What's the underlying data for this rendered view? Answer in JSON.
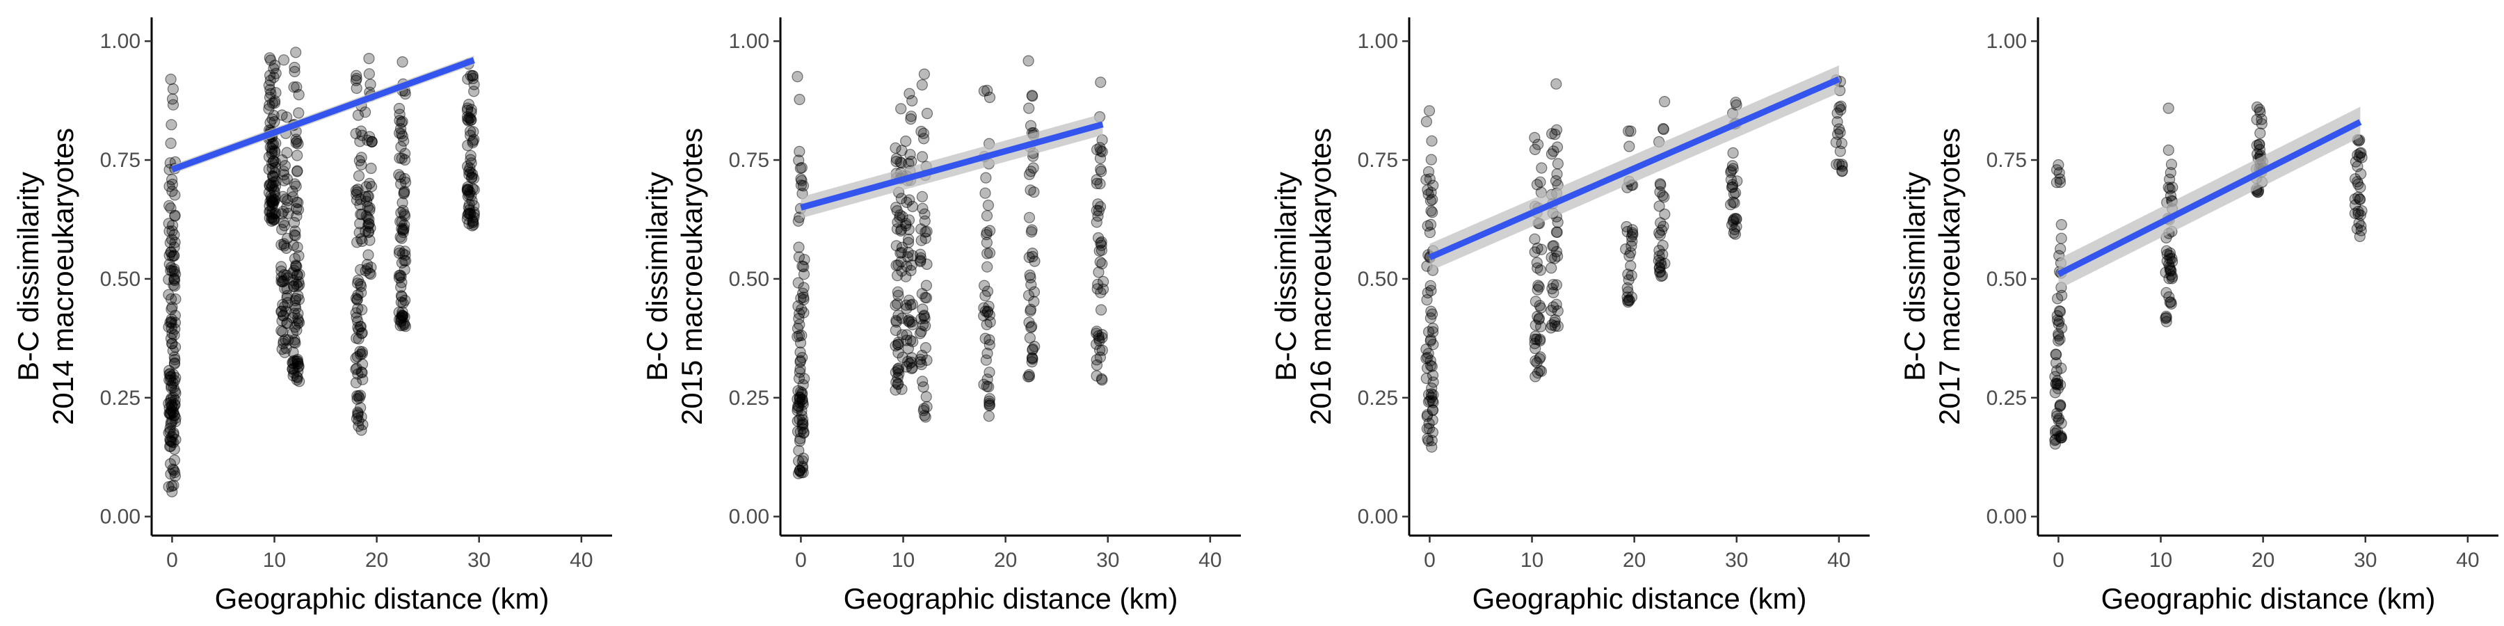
{
  "colors": {
    "points": "#000000",
    "fit_line": "#3355ee",
    "ci_band": "#bdbdbd",
    "axis": "#000000"
  },
  "chart_data": [
    {
      "type": "scatter",
      "title": "",
      "xlabel": "Geographic distance (km)",
      "ylabel": [
        "B-C dissimilarity",
        "2014 macroeukaryotes"
      ],
      "xlim": [
        -2,
        43
      ],
      "ylim": [
        -0.04,
        1.05
      ],
      "xticks": [
        0,
        10,
        20,
        30,
        40
      ],
      "xtick_labels": [
        "0",
        "10",
        "20",
        "30",
        "40"
      ],
      "yticks": [
        0,
        0.25,
        0.5,
        0.75,
        1
      ],
      "ytick_labels": [
        "0.00",
        "0.25",
        "0.50",
        "0.75",
        "1.00"
      ],
      "grid": false,
      "point_groups": [
        {
          "x": 0.0,
          "count": 140,
          "y_min": 0.05,
          "y_max": 0.99
        },
        {
          "x": 9.8,
          "count": 90,
          "y_min": 0.62,
          "y_max": 1.0
        },
        {
          "x": 11.0,
          "count": 60,
          "y_min": 0.33,
          "y_max": 1.0
        },
        {
          "x": 12.1,
          "count": 90,
          "y_min": 0.28,
          "y_max": 1.0
        },
        {
          "x": 18.3,
          "count": 80,
          "y_min": 0.18,
          "y_max": 1.0
        },
        {
          "x": 19.2,
          "count": 40,
          "y_min": 0.5,
          "y_max": 1.0
        },
        {
          "x": 22.5,
          "count": 80,
          "y_min": 0.39,
          "y_max": 0.98
        },
        {
          "x": 29.2,
          "count": 70,
          "y_min": 0.6,
          "y_max": 0.99
        }
      ],
      "fit": {
        "x_start": 0,
        "x_end": 29.5,
        "y_start": 0.73,
        "y_end": 0.96,
        "ci": 0.006
      }
    },
    {
      "type": "scatter",
      "title": "",
      "xlabel": "Geographic distance (km)",
      "ylabel": [
        "B-C dissimilarity",
        "2015 macroeukaryotes"
      ],
      "xlim": [
        -2,
        43
      ],
      "ylim": [
        -0.04,
        1.05
      ],
      "xticks": [
        0,
        10,
        20,
        30,
        40
      ],
      "xtick_labels": [
        "0",
        "10",
        "20",
        "30",
        "40"
      ],
      "yticks": [
        0,
        0.25,
        0.5,
        0.75,
        1
      ],
      "ytick_labels": [
        "0.00",
        "0.25",
        "0.50",
        "0.75",
        "1.00"
      ],
      "grid": false,
      "point_groups": [
        {
          "x": 0.0,
          "count": 90,
          "y_min": 0.09,
          "y_max": 0.97
        },
        {
          "x": 9.6,
          "count": 60,
          "y_min": 0.26,
          "y_max": 0.99
        },
        {
          "x": 10.6,
          "count": 50,
          "y_min": 0.3,
          "y_max": 0.99
        },
        {
          "x": 12.0,
          "count": 50,
          "y_min": 0.2,
          "y_max": 1.0
        },
        {
          "x": 18.2,
          "count": 45,
          "y_min": 0.2,
          "y_max": 0.98
        },
        {
          "x": 22.5,
          "count": 45,
          "y_min": 0.29,
          "y_max": 0.98
        },
        {
          "x": 29.2,
          "count": 50,
          "y_min": 0.28,
          "y_max": 0.98
        }
      ],
      "fit": {
        "x_start": 0,
        "x_end": 29.5,
        "y_start": 0.65,
        "y_end": 0.825,
        "ci": 0.014
      }
    },
    {
      "type": "scatter",
      "title": "",
      "xlabel": "Geographic distance (km)",
      "ylabel": [
        "B-C dissimilarity",
        "2016 macroeukaryotes"
      ],
      "xlim": [
        -2,
        43
      ],
      "ylim": [
        -0.04,
        1.05
      ],
      "xticks": [
        0,
        10,
        20,
        30,
        40
      ],
      "xtick_labels": [
        "0",
        "10",
        "20",
        "30",
        "40"
      ],
      "yticks": [
        0,
        0.25,
        0.5,
        0.75,
        1
      ],
      "ytick_labels": [
        "0.00",
        "0.25",
        "0.50",
        "0.75",
        "1.00"
      ],
      "grid": false,
      "point_groups": [
        {
          "x": 0.0,
          "count": 70,
          "y_min": 0.14,
          "y_max": 0.86
        },
        {
          "x": 10.6,
          "count": 45,
          "y_min": 0.29,
          "y_max": 0.94
        },
        {
          "x": 12.2,
          "count": 40,
          "y_min": 0.39,
          "y_max": 0.95
        },
        {
          "x": 19.5,
          "count": 30,
          "y_min": 0.45,
          "y_max": 0.92
        },
        {
          "x": 22.7,
          "count": 30,
          "y_min": 0.5,
          "y_max": 0.93
        },
        {
          "x": 29.7,
          "count": 30,
          "y_min": 0.59,
          "y_max": 0.92
        },
        {
          "x": 40.0,
          "count": 20,
          "y_min": 0.72,
          "y_max": 0.98
        }
      ],
      "fit": {
        "x_start": 0,
        "x_end": 40,
        "y_start": 0.545,
        "y_end": 0.92,
        "ci": 0.018
      }
    },
    {
      "type": "scatter",
      "title": "",
      "xlabel": "Geographic distance (km)",
      "ylabel": [
        "B-C dissimilarity",
        "2017 macroeukaryotes"
      ],
      "xlim": [
        -2,
        43
      ],
      "ylim": [
        -0.04,
        1.05
      ],
      "xticks": [
        0,
        10,
        20,
        30,
        40
      ],
      "xtick_labels": [
        "0",
        "10",
        "20",
        "30",
        "40"
      ],
      "yticks": [
        0,
        0.25,
        0.5,
        0.75,
        1
      ],
      "ytick_labels": [
        "0.00",
        "0.25",
        "0.50",
        "0.75",
        "1.00"
      ],
      "grid": false,
      "point_groups": [
        {
          "x": 0.0,
          "count": 60,
          "y_min": 0.15,
          "y_max": 0.81
        },
        {
          "x": 10.8,
          "count": 45,
          "y_min": 0.41,
          "y_max": 0.89
        },
        {
          "x": 19.7,
          "count": 30,
          "y_min": 0.68,
          "y_max": 0.88
        },
        {
          "x": 29.3,
          "count": 30,
          "y_min": 0.58,
          "y_max": 0.87
        }
      ],
      "fit": {
        "x_start": 0,
        "x_end": 29.5,
        "y_start": 0.51,
        "y_end": 0.83,
        "ci": 0.02
      }
    }
  ]
}
